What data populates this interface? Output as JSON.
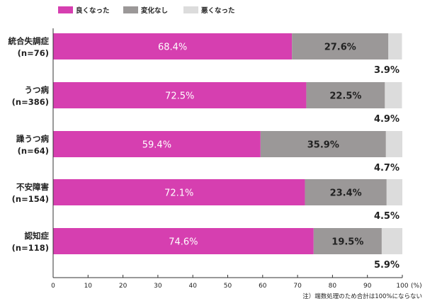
{
  "chart_data": {
    "type": "bar",
    "orientation": "horizontal",
    "stacked": true,
    "categories": [
      {
        "name": "統合失調症",
        "n": "(n=76)"
      },
      {
        "name": "うつ病",
        "n": "(n=386)"
      },
      {
        "name": "躁うつ病",
        "n": "(n=64)"
      },
      {
        "name": "不安障害",
        "n": "(n=154)"
      },
      {
        "name": "認知症",
        "n": "(n=118)"
      }
    ],
    "series": [
      {
        "name": "良くなった",
        "color": "#d63fb0",
        "values": [
          68.4,
          72.5,
          59.4,
          72.1,
          74.6
        ]
      },
      {
        "name": "変化なし",
        "color": "#9b9898",
        "values": [
          27.6,
          22.5,
          35.9,
          23.4,
          19.5
        ]
      },
      {
        "name": "悪くなった",
        "color": "#dcdcdc",
        "values": [
          3.9,
          4.9,
          4.7,
          4.5,
          5.9
        ]
      }
    ],
    "xlim": [
      0,
      100
    ],
    "xticks": [
      0,
      10,
      20,
      30,
      40,
      50,
      60,
      70,
      80,
      90,
      100
    ],
    "xunit": "(%)",
    "legend": "top-left",
    "grid": false
  },
  "footnote": "注）端数処理のため合計は100%にならない"
}
